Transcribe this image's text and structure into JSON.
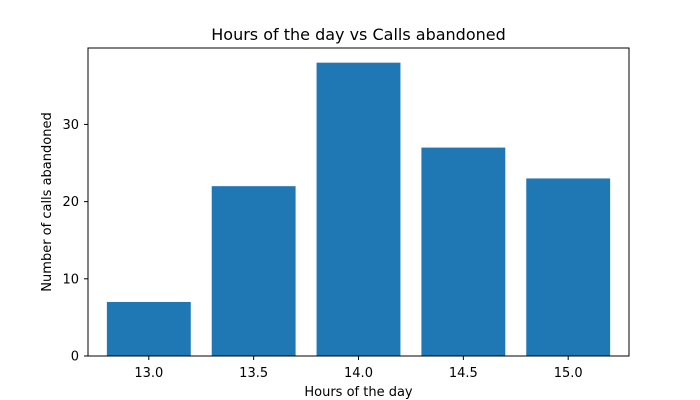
{
  "chart_data": {
    "type": "bar",
    "title": "Hours of the day vs Calls abandoned",
    "xlabel": "Hours of the day",
    "ylabel": "Number of calls abandoned",
    "categories": [
      "13.0",
      "13.5",
      "14.0",
      "14.5",
      "15.0"
    ],
    "x": [
      13.0,
      13.5,
      14.0,
      14.5,
      15.0
    ],
    "values": [
      7,
      22,
      38,
      27,
      23
    ],
    "xlim": [
      12.71,
      15.29
    ],
    "ylim": [
      0,
      39.9
    ],
    "yticks": [
      0,
      10,
      20,
      30
    ],
    "bar_width": 0.4,
    "bar_color": "#1f77b4",
    "grid": false,
    "legend": "none"
  }
}
